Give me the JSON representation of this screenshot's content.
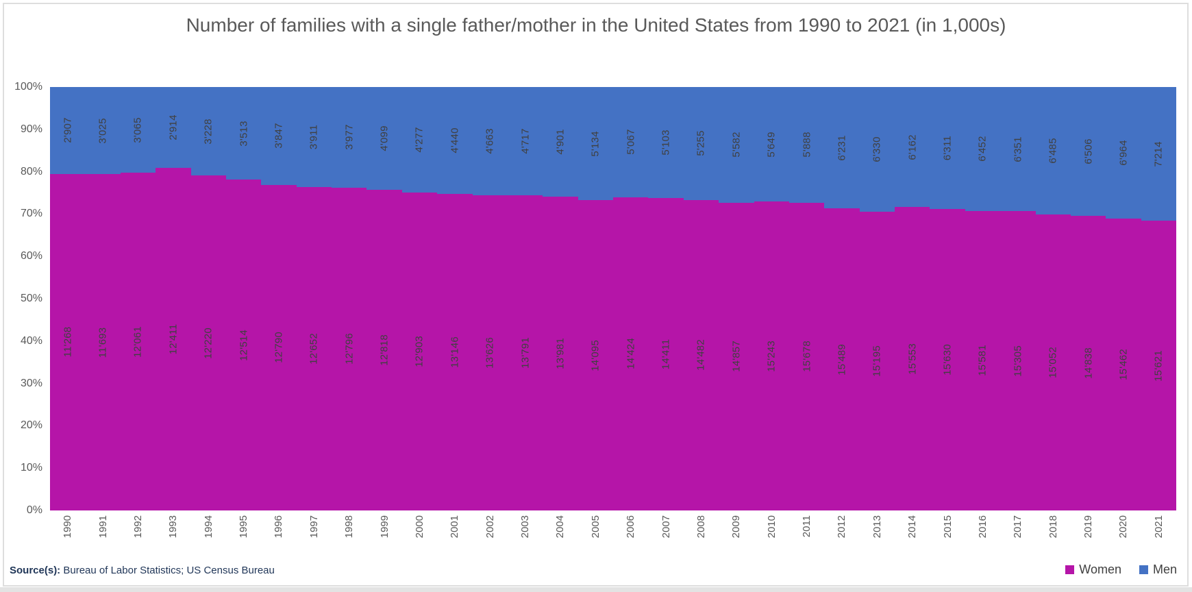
{
  "title": "Number of families with a single father/mother in the United States from 1990 to 2021 (in 1,000s)",
  "source": {
    "prefix": "Source(s):",
    "text": "Bureau of Labor Statistics; US Census Bureau"
  },
  "legend": [
    {
      "label": "Women",
      "color": "#b515a8"
    },
    {
      "label": "Men",
      "color": "#4472c4"
    }
  ],
  "colors": {
    "women": "#b515a8",
    "men": "#4472c4",
    "title_text": "#595959",
    "axis_text": "#595959",
    "value_label_text": "#404040",
    "source_text": "#1f3557",
    "frame_border": "#dedede"
  },
  "chart_data": {
    "type": "bar",
    "subtype": "stacked-100-percent",
    "title": "Number of families with a single father/mother in the United States from 1990 to 2021 (in 1,000s)",
    "xlabel": "",
    "ylabel": "",
    "ylim": [
      0,
      100
    ],
    "grid": false,
    "legend_position": "bottom-right",
    "y_ticks": [
      "0%",
      "10%",
      "20%",
      "30%",
      "40%",
      "50%",
      "60%",
      "70%",
      "80%",
      "90%",
      "100%"
    ],
    "categories": [
      "1990",
      "1991",
      "1992",
      "1993",
      "1994",
      "1995",
      "1996",
      "1997",
      "1998",
      "1999",
      "2000",
      "2001",
      "2002",
      "2003",
      "2004",
      "2005",
      "2006",
      "2007",
      "2008",
      "2009",
      "2010",
      "2011",
      "2012",
      "2013",
      "2014",
      "2015",
      "2016",
      "2017",
      "2018",
      "2019",
      "2020",
      "2021"
    ],
    "series": [
      {
        "name": "Women",
        "color": "#b515a8",
        "labels": [
          "11'268",
          "11'693",
          "12'061",
          "12'411",
          "12'220",
          "12'514",
          "12'790",
          "12'652",
          "12'796",
          "12'818",
          "12'903",
          "13'146",
          "13'626",
          "13'791",
          "13'981",
          "14'095",
          "14'424",
          "14'411",
          "14'482",
          "14'857",
          "15'243",
          "15'678",
          "15'489",
          "15'195",
          "15'553",
          "15'630",
          "15'581",
          "15'305",
          "15'052",
          "14'838",
          "15'462",
          "15'621"
        ],
        "values": [
          11268,
          11693,
          12061,
          12411,
          12220,
          12514,
          12790,
          12652,
          12796,
          12818,
          12903,
          13146,
          13626,
          13791,
          13981,
          14095,
          14424,
          14411,
          14482,
          14857,
          15243,
          15678,
          15489,
          15195,
          15553,
          15630,
          15581,
          15305,
          15052,
          14838,
          15462,
          15621
        ]
      },
      {
        "name": "Men",
        "color": "#4472c4",
        "labels": [
          "2'907",
          "3'025",
          "3'065",
          "2'914",
          "3'228",
          "3'513",
          "3'847",
          "3'911",
          "3'977",
          "4'099",
          "4'277",
          "4'440",
          "4'663",
          "4'717",
          "4'901",
          "5'134",
          "5'067",
          "5'103",
          "5'255",
          "5'582",
          "5'649",
          "5'888",
          "6'231",
          "6'330",
          "6'162",
          "6'311",
          "6'452",
          "6'351",
          "6'485",
          "6'506",
          "6'964",
          "7'214"
        ],
        "values": [
          2907,
          3025,
          3065,
          2914,
          3228,
          3513,
          3847,
          3911,
          3977,
          4099,
          4277,
          4440,
          4663,
          4717,
          4901,
          5134,
          5067,
          5103,
          5255,
          5582,
          5649,
          5888,
          6231,
          6330,
          6162,
          6311,
          6452,
          6351,
          6485,
          6506,
          6964,
          7214
        ]
      }
    ]
  }
}
